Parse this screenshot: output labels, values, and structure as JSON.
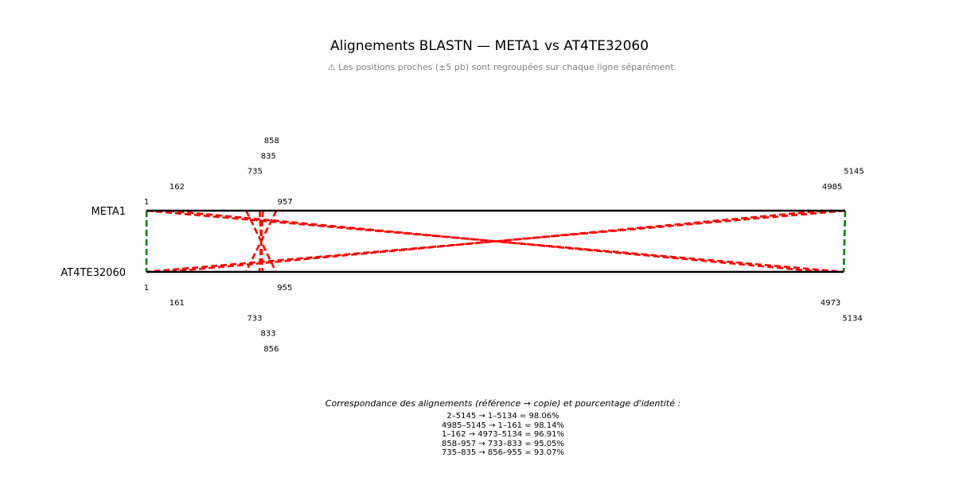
{
  "title": "Alignements BLASTN — META1 vs AT4TE32060",
  "subtitle": "⚠ Les positions proches (±5 pb) sont regroupées sur chaque ligne séparément.",
  "chart_data": {
    "type": "alignment-map",
    "reference": {
      "name": "META1",
      "length": 5145
    },
    "copy": {
      "name": "AT4TE32060",
      "length": 5134
    },
    "colors": {
      "forward": "#008000",
      "reverse": "#ff0000",
      "sequence": "#000000"
    },
    "alignments": [
      {
        "ref_start": 2,
        "ref_end": 5145,
        "copy_start": 1,
        "copy_end": 5134,
        "identity": "98.06%",
        "orientation": "forward"
      },
      {
        "ref_start": 4985,
        "ref_end": 5145,
        "copy_start": 1,
        "copy_end": 161,
        "identity": "98.14%",
        "orientation": "reverse"
      },
      {
        "ref_start": 1,
        "ref_end": 162,
        "copy_start": 4973,
        "copy_end": 5134,
        "identity": "96.91%",
        "orientation": "reverse"
      },
      {
        "ref_start": 858,
        "ref_end": 957,
        "copy_start": 733,
        "copy_end": 833,
        "identity": "95.05%",
        "orientation": "reverse"
      },
      {
        "ref_start": 735,
        "ref_end": 835,
        "copy_start": 856,
        "copy_end": 955,
        "identity": "93.07%",
        "orientation": "reverse"
      }
    ],
    "ref_tick_labels": [
      "1",
      "162",
      "735",
      "835",
      "858",
      "957",
      "4985",
      "5145"
    ],
    "copy_tick_labels": [
      "1",
      "161",
      "733",
      "833",
      "856",
      "955",
      "4973",
      "5134"
    ]
  },
  "legend": {
    "title": "Correspondance des alignements (référence → copie) et pourcentage d'identité :",
    "lines": [
      "2–5145 → 1–5134 = 98.06%",
      "4985–5145 → 1–161 = 98.14%",
      "1–162 → 4973–5134 = 96.91%",
      "858–957 → 733–833 = 95.05%",
      "735–835 → 856–955 = 93.07%"
    ]
  }
}
